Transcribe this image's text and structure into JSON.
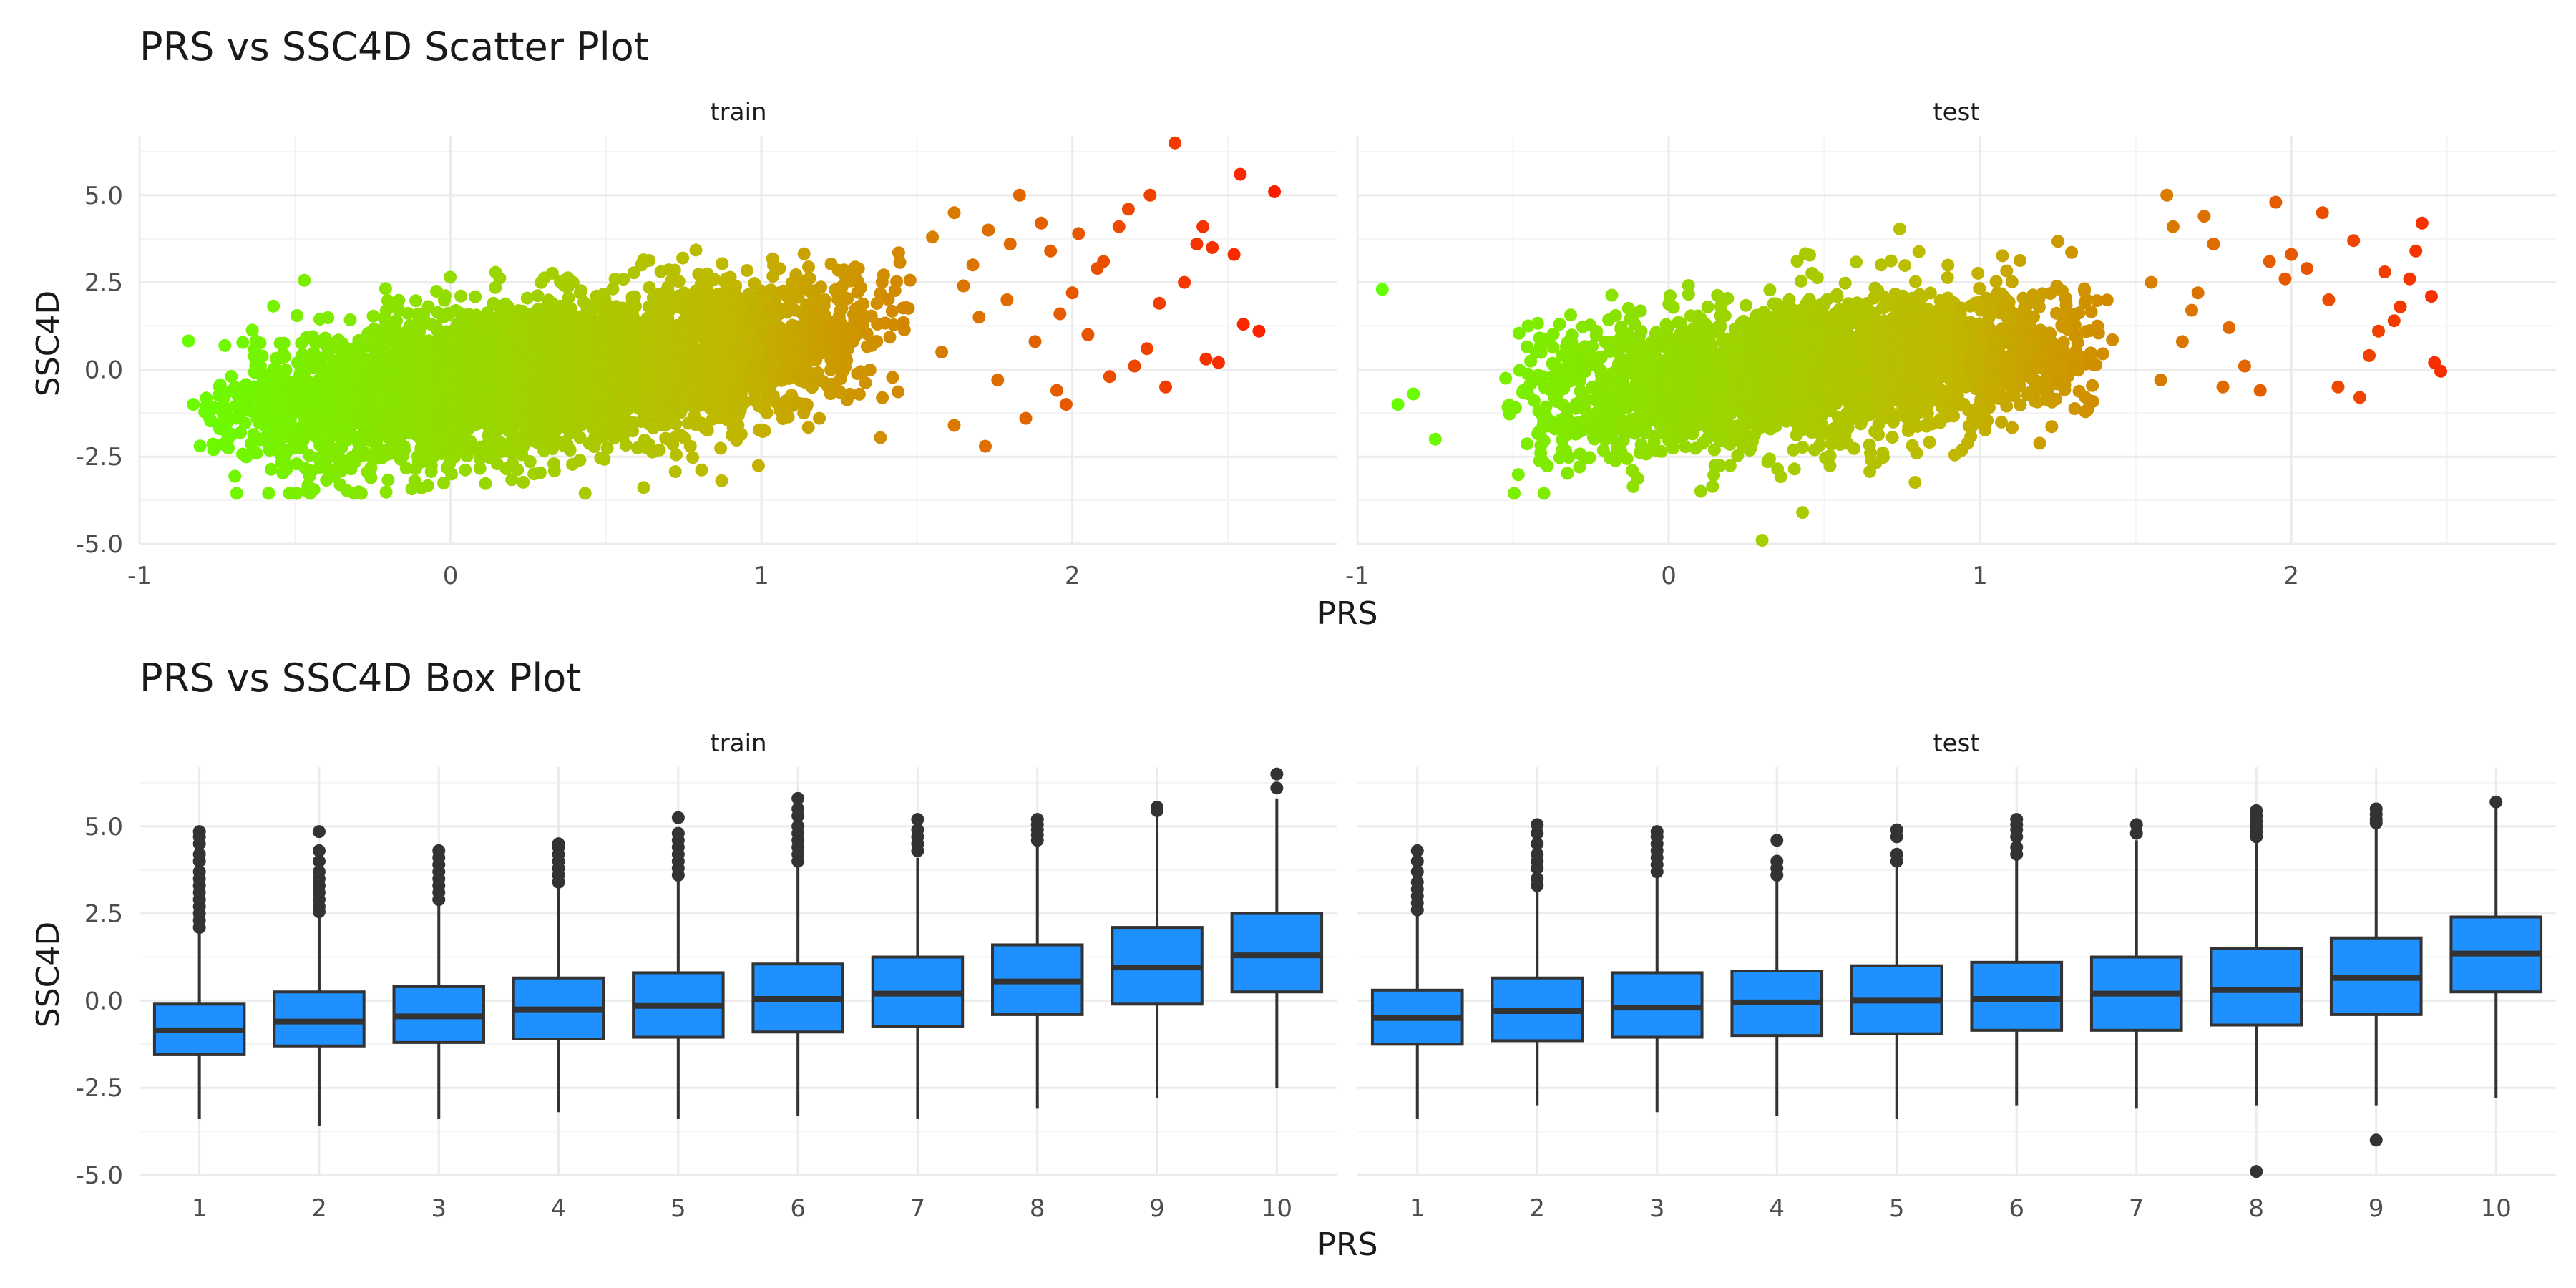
{
  "chart_data": [
    {
      "type": "scatter",
      "title": "PRS vs SSC4D Scatter Plot",
      "xlabel": "PRS",
      "ylabel": "SSC4D",
      "xlim": [
        -1.0,
        2.85
      ],
      "ylim": [
        -5.0,
        6.7
      ],
      "x_ticks": [
        -1,
        0,
        1,
        2
      ],
      "y_ticks": [
        -5.0,
        -2.5,
        0.0,
        2.5,
        5.0
      ],
      "y_tick_labels": [
        "-5.0",
        "-2.5",
        "0.0",
        "2.5",
        "5.0"
      ],
      "grid": true,
      "color_scale": {
        "low": "#66ff00",
        "mid": "#c0b800",
        "high": "#ff1a00",
        "domain": [
          -0.9,
          2.7
        ]
      },
      "panels": [
        {
          "name": "train",
          "main_cloud": {
            "x_range": [
              -0.85,
              1.5
            ],
            "slope": 1.15,
            "intercept": -0.5,
            "sd": 1.05,
            "n": 4000
          },
          "points": [
            [
              2.33,
              6.5
            ],
            [
              2.54,
              5.6
            ],
            [
              2.65,
              5.1
            ],
            [
              2.55,
              1.3
            ],
            [
              2.6,
              1.1
            ],
            [
              2.43,
              0.3
            ],
            [
              2.47,
              0.2
            ],
            [
              1.72,
              -2.2
            ],
            [
              1.85,
              -1.4
            ],
            [
              1.95,
              -0.6
            ],
            [
              2.2,
              0.1
            ],
            [
              2.4,
              3.6
            ],
            [
              2.1,
              3.1
            ],
            [
              2.15,
              4.1
            ],
            [
              2.25,
              5.0
            ],
            [
              1.9,
              4.2
            ],
            [
              1.8,
              3.6
            ],
            [
              2.0,
              2.2
            ],
            [
              2.3,
              -0.5
            ],
            [
              1.7,
              1.5
            ],
            [
              1.62,
              4.5
            ],
            [
              2.05,
              1.0
            ],
            [
              1.65,
              2.4
            ],
            [
              1.76,
              -0.3
            ],
            [
              1.88,
              0.8
            ],
            [
              2.45,
              3.5
            ],
            [
              2.52,
              3.3
            ],
            [
              1.98,
              -1.0
            ],
            [
              2.08,
              2.9
            ],
            [
              2.28,
              1.9
            ],
            [
              1.68,
              3.0
            ],
            [
              1.83,
              5.0
            ],
            [
              1.93,
              3.4
            ],
            [
              2.12,
              -0.2
            ],
            [
              2.36,
              2.5
            ],
            [
              1.58,
              0.5
            ],
            [
              1.55,
              3.8
            ],
            [
              1.62,
              -1.6
            ],
            [
              2.42,
              4.1
            ],
            [
              2.18,
              4.6
            ],
            [
              1.79,
              2.0
            ],
            [
              1.96,
              1.6
            ],
            [
              2.24,
              0.6
            ],
            [
              1.73,
              4.0
            ],
            [
              2.02,
              3.9
            ]
          ]
        },
        {
          "name": "test",
          "main_cloud": {
            "x_range": [
              -0.55,
              1.45
            ],
            "slope": 0.95,
            "intercept": -0.45,
            "sd": 1.0,
            "n": 2800
          },
          "points": [
            [
              -0.92,
              2.3
            ],
            [
              -0.87,
              -1.0
            ],
            [
              -0.82,
              -0.7
            ],
            [
              -0.75,
              -2.0
            ],
            [
              0.3,
              -4.9
            ],
            [
              0.43,
              -4.1
            ],
            [
              2.46,
              0.2
            ],
            [
              2.48,
              -0.05
            ],
            [
              2.42,
              4.2
            ],
            [
              2.45,
              2.1
            ],
            [
              2.3,
              2.8
            ],
            [
              2.2,
              3.7
            ],
            [
              2.1,
              4.5
            ],
            [
              2.05,
              2.9
            ],
            [
              1.95,
              4.8
            ],
            [
              2.35,
              1.8
            ],
            [
              2.25,
              0.4
            ],
            [
              2.15,
              -0.5
            ],
            [
              2.22,
              -0.8
            ],
            [
              1.98,
              2.6
            ],
            [
              1.9,
              -0.6
            ],
            [
              1.8,
              1.2
            ],
            [
              1.75,
              3.6
            ],
            [
              1.7,
              2.2
            ],
            [
              1.65,
              0.8
            ],
            [
              1.62,
              4.1
            ],
            [
              1.58,
              -0.3
            ],
            [
              1.6,
              5.0
            ],
            [
              1.85,
              0.1
            ],
            [
              2.0,
              3.3
            ],
            [
              2.38,
              2.6
            ],
            [
              2.28,
              1.1
            ],
            [
              1.68,
              1.7
            ],
            [
              1.55,
              2.5
            ],
            [
              1.78,
              -0.5
            ],
            [
              1.93,
              3.1
            ],
            [
              2.12,
              2.0
            ],
            [
              2.4,
              3.4
            ],
            [
              1.72,
              4.4
            ],
            [
              2.33,
              1.4
            ]
          ]
        }
      ]
    },
    {
      "type": "box",
      "title": "PRS vs SSC4D Box Plot",
      "xlabel": "PRS",
      "ylabel": "SSC4D",
      "categories": [
        "1",
        "2",
        "3",
        "4",
        "5",
        "6",
        "7",
        "8",
        "9",
        "10"
      ],
      "ylim": [
        -5.0,
        6.7
      ],
      "y_ticks": [
        -5.0,
        -2.5,
        0.0,
        2.5,
        5.0
      ],
      "y_tick_labels": [
        "-5.0",
        "-2.5",
        "0.0",
        "2.5",
        "5.0"
      ],
      "fill": "#1e90ff",
      "grid": true,
      "panels": [
        {
          "name": "train",
          "boxes": [
            {
              "min": -3.4,
              "q1": -1.55,
              "median": -0.85,
              "q3": -0.1,
              "max": 2.0,
              "outliers": [
                2.1,
                2.3,
                2.5,
                2.7,
                2.9,
                3.1,
                3.3,
                3.5,
                3.7,
                4.0,
                4.2,
                4.5,
                4.7,
                4.85
              ]
            },
            {
              "min": -3.6,
              "q1": -1.3,
              "median": -0.6,
              "q3": 0.25,
              "max": 2.4,
              "outliers": [
                2.55,
                2.7,
                2.9,
                3.1,
                3.3,
                3.5,
                3.7,
                4.0,
                4.3,
                4.85
              ]
            },
            {
              "min": -3.4,
              "q1": -1.2,
              "median": -0.45,
              "q3": 0.4,
              "max": 2.8,
              "outliers": [
                2.9,
                3.1,
                3.3,
                3.5,
                3.7,
                3.9,
                4.1,
                4.3
              ]
            },
            {
              "min": -3.2,
              "q1": -1.1,
              "median": -0.25,
              "q3": 0.65,
              "max": 3.3,
              "outliers": [
                3.4,
                3.6,
                3.8,
                4.0,
                4.2,
                4.4,
                4.5
              ]
            },
            {
              "min": -3.4,
              "q1": -1.05,
              "median": -0.15,
              "q3": 0.8,
              "max": 3.5,
              "outliers": [
                3.6,
                3.8,
                4.0,
                4.2,
                4.4,
                4.6,
                4.8,
                5.25
              ]
            },
            {
              "min": -3.3,
              "q1": -0.9,
              "median": 0.05,
              "q3": 1.05,
              "max": 3.9,
              "outliers": [
                4.0,
                4.2,
                4.4,
                4.6,
                4.8,
                5.0,
                5.3,
                5.5,
                5.8
              ]
            },
            {
              "min": -3.4,
              "q1": -0.75,
              "median": 0.2,
              "q3": 1.25,
              "max": 4.1,
              "outliers": [
                4.3,
                4.5,
                4.7,
                4.9,
                5.2
              ]
            },
            {
              "min": -3.1,
              "q1": -0.4,
              "median": 0.55,
              "q3": 1.6,
              "max": 4.5,
              "outliers": [
                4.6,
                4.75,
                4.9,
                5.05,
                5.2
              ]
            },
            {
              "min": -2.8,
              "q1": -0.1,
              "median": 0.95,
              "q3": 2.1,
              "max": 5.35,
              "outliers": [
                5.45,
                5.55
              ]
            },
            {
              "min": -2.5,
              "q1": 0.25,
              "median": 1.3,
              "q3": 2.5,
              "max": 5.8,
              "outliers": [
                6.1,
                6.5
              ]
            }
          ]
        },
        {
          "name": "test",
          "boxes": [
            {
              "min": -3.4,
              "q1": -1.25,
              "median": -0.5,
              "q3": 0.3,
              "max": 2.5,
              "outliers": [
                2.6,
                2.8,
                3.0,
                3.2,
                3.4,
                3.7,
                4.0,
                4.3
              ]
            },
            {
              "min": -3.0,
              "q1": -1.15,
              "median": -0.3,
              "q3": 0.65,
              "max": 3.2,
              "outliers": [
                3.3,
                3.5,
                3.8,
                4.0,
                4.2,
                4.5,
                4.8,
                5.05
              ]
            },
            {
              "min": -3.2,
              "q1": -1.05,
              "median": -0.2,
              "q3": 0.8,
              "max": 3.6,
              "outliers": [
                3.7,
                3.9,
                4.1,
                4.3,
                4.5,
                4.7,
                4.85
              ]
            },
            {
              "min": -3.3,
              "q1": -1.0,
              "median": -0.05,
              "q3": 0.85,
              "max": 3.5,
              "outliers": [
                3.6,
                3.8,
                4.0,
                4.6
              ]
            },
            {
              "min": -3.4,
              "q1": -0.95,
              "median": 0.0,
              "q3": 1.0,
              "max": 3.9,
              "outliers": [
                4.0,
                4.2,
                4.7,
                4.9
              ]
            },
            {
              "min": -3.0,
              "q1": -0.85,
              "median": 0.05,
              "q3": 1.1,
              "max": 4.1,
              "outliers": [
                4.2,
                4.4,
                4.7,
                4.9,
                5.05,
                5.2
              ]
            },
            {
              "min": -3.1,
              "q1": -0.85,
              "median": 0.2,
              "q3": 1.25,
              "max": 4.6,
              "outliers": [
                4.8,
                5.05
              ]
            },
            {
              "min": -3.0,
              "q1": -0.7,
              "median": 0.3,
              "q3": 1.5,
              "max": 4.6,
              "outliers": [
                -4.9,
                4.7,
                4.85,
                5.0,
                5.15,
                5.3,
                5.45
              ]
            },
            {
              "min": -3.0,
              "q1": -0.4,
              "median": 0.65,
              "q3": 1.8,
              "max": 5.0,
              "outliers": [
                -4.0,
                5.1,
                5.2,
                5.35,
                5.5
              ]
            },
            {
              "min": -2.8,
              "q1": 0.25,
              "median": 1.35,
              "q3": 2.4,
              "max": 5.6,
              "outliers": [
                5.7
              ]
            }
          ]
        }
      ]
    }
  ]
}
